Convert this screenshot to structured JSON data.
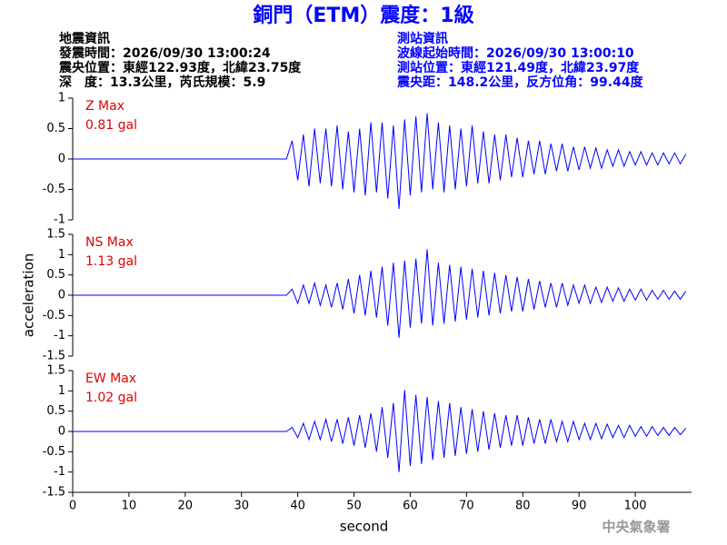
{
  "title": "銅門（ETM）震度：1級",
  "quake_info": {
    "lines": [
      "地震資訊",
      "發震時間：2026/09/30 13:00:24",
      "震央位置：東經122.93度，北緯23.75度",
      "深　度：13.3公里，芮氏規模：5.9"
    ]
  },
  "station_info": {
    "lines": [
      "測站資訊",
      "波線起始時間：2026/09/30 13:00:10",
      "測站位置：東經121.49度，北緯23.97度",
      "震央距：148.2公里，反方位角：99.44度"
    ]
  },
  "watermark": "中央氣象署",
  "chart_data": [
    {
      "type": "line",
      "label": "Z Max",
      "max_label": "0.81 gal",
      "color": "#0000ff",
      "x": [
        0,
        38,
        39,
        40,
        41,
        42,
        43,
        44,
        45,
        46,
        47,
        48,
        49,
        50,
        51,
        52,
        53,
        54,
        55,
        56,
        57,
        58,
        59,
        60,
        61,
        62,
        63,
        64,
        65,
        66,
        67,
        68,
        69,
        70,
        71,
        72,
        73,
        74,
        75,
        76,
        77,
        78,
        79,
        80,
        81,
        82,
        83,
        84,
        85,
        86,
        87,
        88,
        89,
        90,
        91,
        92,
        93,
        94,
        95,
        96,
        97,
        98,
        99,
        100,
        101,
        102,
        103,
        104,
        105,
        106,
        107,
        108,
        109
      ],
      "values": [
        0,
        0,
        0.3,
        -0.35,
        0.4,
        -0.45,
        0.5,
        -0.4,
        0.5,
        -0.45,
        0.55,
        -0.5,
        0.45,
        -0.55,
        0.5,
        -0.6,
        0.6,
        -0.55,
        0.6,
        -0.65,
        0.55,
        -0.82,
        0.65,
        -0.6,
        0.7,
        -0.55,
        0.75,
        -0.5,
        0.6,
        -0.55,
        0.55,
        -0.5,
        0.5,
        -0.45,
        0.55,
        -0.4,
        0.45,
        -0.4,
        0.4,
        -0.35,
        0.4,
        -0.3,
        0.35,
        -0.3,
        0.3,
        -0.25,
        0.3,
        -0.25,
        0.25,
        -0.2,
        0.25,
        -0.2,
        0.2,
        -0.18,
        0.2,
        -0.15,
        0.18,
        -0.15,
        0.15,
        -0.12,
        0.15,
        -0.12,
        0.12,
        -0.1,
        0.12,
        -0.1,
        0.1,
        -0.1,
        0.1,
        -0.08,
        0.1,
        -0.08,
        0.08
      ],
      "xlim": [
        0,
        110
      ],
      "ylim": [
        -1,
        1
      ],
      "yticks": [
        -1,
        -0.5,
        0,
        0.5,
        1
      ]
    },
    {
      "type": "line",
      "label": "NS Max",
      "max_label": "1.13 gal",
      "color": "#0000ff",
      "ylabel": "acceleration",
      "x": [
        0,
        38,
        39,
        40,
        41,
        42,
        43,
        44,
        45,
        46,
        47,
        48,
        49,
        50,
        51,
        52,
        53,
        54,
        55,
        56,
        57,
        58,
        59,
        60,
        61,
        62,
        63,
        64,
        65,
        66,
        67,
        68,
        69,
        70,
        71,
        72,
        73,
        74,
        75,
        76,
        77,
        78,
        79,
        80,
        81,
        82,
        83,
        84,
        85,
        86,
        87,
        88,
        89,
        90,
        91,
        92,
        93,
        94,
        95,
        96,
        97,
        98,
        99,
        100,
        101,
        102,
        103,
        104,
        105,
        106,
        107,
        108,
        109
      ],
      "values": [
        0,
        0,
        0.15,
        -0.2,
        0.25,
        -0.2,
        0.3,
        -0.25,
        0.25,
        -0.3,
        0.3,
        -0.35,
        0.4,
        -0.45,
        0.5,
        -0.5,
        0.6,
        -0.55,
        0.7,
        -0.75,
        0.8,
        -1.05,
        0.85,
        -0.8,
        0.9,
        -0.7,
        1.13,
        -0.75,
        0.8,
        -0.7,
        0.75,
        -0.65,
        0.7,
        -0.6,
        0.65,
        -0.55,
        0.6,
        -0.5,
        0.55,
        -0.45,
        0.5,
        -0.4,
        0.45,
        -0.4,
        0.4,
        -0.35,
        0.35,
        -0.3,
        0.3,
        -0.3,
        0.3,
        -0.25,
        0.25,
        -0.2,
        0.25,
        -0.2,
        0.2,
        -0.18,
        0.2,
        -0.15,
        0.18,
        -0.15,
        0.15,
        -0.12,
        0.15,
        -0.12,
        0.12,
        -0.1,
        0.12,
        -0.1,
        0.1,
        -0.1,
        0.1
      ],
      "xlim": [
        0,
        110
      ],
      "ylim": [
        -1.5,
        1.5
      ],
      "yticks": [
        -1.5,
        -1,
        -0.5,
        0,
        0.5,
        1,
        1.5
      ]
    },
    {
      "type": "line",
      "label": "EW Max",
      "max_label": "1.02 gal",
      "color": "#0000ff",
      "xlabel": "second",
      "x": [
        0,
        38,
        39,
        40,
        41,
        42,
        43,
        44,
        45,
        46,
        47,
        48,
        49,
        50,
        51,
        52,
        53,
        54,
        55,
        56,
        57,
        58,
        59,
        60,
        61,
        62,
        63,
        64,
        65,
        66,
        67,
        68,
        69,
        70,
        71,
        72,
        73,
        74,
        75,
        76,
        77,
        78,
        79,
        80,
        81,
        82,
        83,
        84,
        85,
        86,
        87,
        88,
        89,
        90,
        91,
        92,
        93,
        94,
        95,
        96,
        97,
        98,
        99,
        100,
        101,
        102,
        103,
        104,
        105,
        106,
        107,
        108,
        109
      ],
      "values": [
        0,
        0,
        0.1,
        -0.15,
        0.2,
        -0.2,
        0.25,
        -0.2,
        0.3,
        -0.25,
        0.3,
        -0.3,
        0.35,
        -0.35,
        0.4,
        -0.4,
        0.45,
        -0.5,
        0.6,
        -0.65,
        0.7,
        -1.0,
        1.02,
        -0.85,
        0.9,
        -0.8,
        0.85,
        -0.7,
        0.75,
        -0.65,
        0.7,
        -0.6,
        0.6,
        -0.55,
        0.55,
        -0.5,
        0.5,
        -0.45,
        0.45,
        -0.4,
        0.4,
        -0.35,
        0.4,
        -0.35,
        0.35,
        -0.3,
        0.3,
        -0.3,
        0.3,
        -0.25,
        0.25,
        -0.25,
        0.25,
        -0.2,
        0.2,
        -0.2,
        0.2,
        -0.18,
        0.18,
        -0.15,
        0.15,
        -0.15,
        0.15,
        -0.12,
        0.12,
        -0.12,
        0.12,
        -0.1,
        0.1,
        -0.1,
        0.1,
        -0.08,
        0.08
      ],
      "xlim": [
        0,
        110
      ],
      "ylim": [
        -1.5,
        1.5
      ],
      "yticks": [
        -1.5,
        -1,
        -0.5,
        0,
        0.5,
        1,
        1.5
      ],
      "xticks": [
        0,
        10,
        20,
        30,
        40,
        50,
        60,
        70,
        80,
        90,
        100
      ]
    }
  ]
}
